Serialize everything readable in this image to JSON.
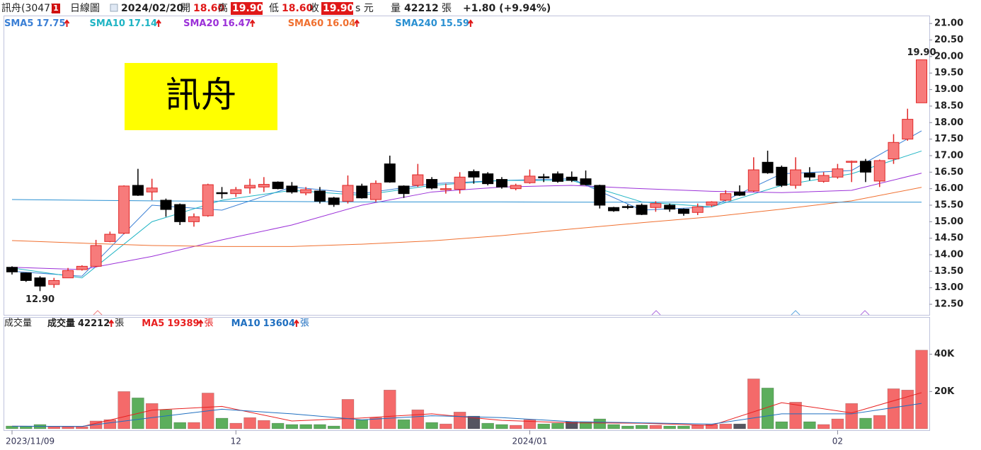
{
  "header": {
    "name": "訊舟(3047)",
    "badge": "1",
    "period": "日線圖",
    "date": "2024/02/20",
    "open_label": "開",
    "open": "18.60",
    "high_label": "高",
    "high": "19.90",
    "low_label": "低",
    "low": "18.60",
    "close_label": "收",
    "close": "19.90",
    "currency": "s 元",
    "volume_label": "量",
    "volume": "42212",
    "volume_unit": "張",
    "change": "+1.80 (+9.94%)"
  },
  "chart_data": [
    {
      "type": "candlestick",
      "title": "訊舟",
      "categories": [
        "2023/11/09",
        null,
        null,
        null,
        null,
        null,
        null,
        null,
        null,
        null,
        null,
        null,
        null,
        null,
        null,
        null,
        "12",
        null,
        null,
        null,
        null,
        null,
        null,
        null,
        null,
        null,
        null,
        null,
        null,
        null,
        null,
        null,
        null,
        null,
        null,
        null,
        null,
        "2024/01",
        null,
        null,
        null,
        null,
        null,
        null,
        null,
        null,
        null,
        null,
        null,
        null,
        null,
        null,
        null,
        null,
        null,
        null,
        null,
        null,
        null,
        "02",
        null,
        null,
        null,
        null,
        null,
        null
      ],
      "open": [
        13.62,
        13.45,
        13.3,
        13.1,
        13.3,
        13.55,
        13.65,
        14.4,
        14.65,
        16.1,
        15.9,
        15.65,
        15.52,
        15.0,
        15.18,
        15.88,
        15.85,
        16.02,
        16.05,
        16.2,
        16.08,
        15.87,
        15.93,
        15.72,
        15.62,
        16.08,
        15.67,
        16.75,
        16.08,
        16.1,
        16.28,
        16.0,
        15.98,
        16.52,
        16.45,
        16.28,
        16.0,
        16.18,
        16.36,
        16.45,
        16.35,
        16.3,
        16.1,
        15.43,
        15.46,
        15.5,
        15.43,
        15.5,
        15.38,
        15.28,
        15.5,
        15.65,
        15.9,
        15.93,
        16.8,
        16.65,
        16.1,
        16.47,
        16.22,
        16.35,
        16.83,
        16.83,
        16.23,
        16.9,
        17.5,
        18.6
      ],
      "high": [
        13.65,
        13.46,
        13.35,
        13.3,
        13.6,
        13.68,
        14.45,
        14.7,
        16.1,
        16.6,
        16.3,
        15.7,
        15.55,
        15.25,
        16.15,
        16.05,
        16.05,
        16.3,
        16.35,
        16.22,
        16.2,
        16.05,
        16.05,
        15.75,
        16.4,
        16.15,
        16.25,
        17.0,
        16.1,
        16.75,
        16.35,
        16.15,
        16.5,
        16.58,
        16.5,
        16.35,
        16.15,
        16.58,
        16.45,
        16.52,
        16.52,
        16.55,
        16.12,
        15.45,
        15.52,
        15.55,
        15.62,
        15.55,
        15.4,
        15.55,
        15.62,
        15.95,
        16.1,
        16.95,
        17.15,
        16.7,
        16.95,
        16.65,
        16.5,
        16.75,
        16.85,
        16.9,
        16.88,
        17.65,
        18.42,
        19.9
      ],
      "low": [
        13.4,
        13.18,
        12.9,
        13.0,
        13.3,
        13.52,
        13.62,
        14.38,
        14.62,
        15.78,
        15.65,
        15.15,
        14.9,
        14.85,
        15.15,
        15.7,
        15.75,
        15.85,
        15.9,
        15.98,
        15.85,
        15.8,
        15.55,
        15.45,
        15.55,
        15.7,
        15.6,
        16.18,
        15.72,
        16.05,
        15.98,
        15.85,
        15.85,
        16.15,
        16.1,
        16.0,
        15.95,
        16.15,
        16.2,
        16.18,
        16.2,
        16.1,
        15.4,
        15.3,
        15.38,
        15.2,
        15.3,
        15.3,
        15.18,
        15.2,
        15.45,
        15.62,
        15.78,
        15.9,
        16.45,
        16.05,
        16.0,
        16.25,
        16.18,
        16.3,
        16.2,
        16.2,
        16.05,
        16.75,
        17.45,
        18.6
      ],
      "close": [
        13.48,
        13.22,
        13.05,
        13.22,
        13.52,
        13.65,
        14.28,
        14.62,
        16.08,
        15.8,
        16.02,
        15.37,
        15.0,
        15.15,
        16.12,
        15.87,
        15.97,
        16.1,
        16.13,
        16.0,
        15.9,
        15.97,
        15.62,
        15.52,
        16.1,
        15.72,
        16.16,
        16.2,
        15.85,
        16.42,
        16.02,
        16.0,
        16.35,
        16.35,
        16.15,
        16.05,
        16.1,
        16.38,
        16.35,
        16.22,
        16.25,
        16.12,
        15.5,
        15.33,
        15.45,
        15.22,
        15.55,
        15.38,
        15.25,
        15.45,
        15.6,
        15.85,
        15.8,
        16.57,
        16.48,
        16.1,
        16.57,
        16.35,
        16.4,
        16.6,
        16.83,
        16.5,
        16.85,
        17.4,
        18.1,
        19.9
      ],
      "up_color": "#f77b7b",
      "up_edge": "#e02828",
      "down_color": "#000000",
      "series": [
        {
          "name": "SMA5",
          "color": "#3a7fd5",
          "x": [
            0,
            5,
            10,
            15,
            20,
            25,
            30,
            35,
            40,
            45,
            50,
            55,
            60,
            65
          ],
          "values": [
            13.5,
            13.35,
            15.5,
            15.35,
            16.05,
            15.85,
            16.15,
            16.25,
            16.3,
            15.35,
            15.45,
            16.45,
            16.55,
            17.75
          ]
        },
        {
          "name": "SMA10",
          "color": "#1fb4c4",
          "x": [
            0,
            5,
            10,
            15,
            20,
            25,
            30,
            35,
            40,
            45,
            50,
            55,
            60,
            65
          ],
          "values": [
            13.6,
            13.3,
            15.0,
            15.65,
            15.95,
            15.8,
            16.1,
            16.25,
            16.25,
            15.6,
            15.45,
            16.1,
            16.45,
            17.14
          ]
        },
        {
          "name": "SMA20",
          "color": "#9b30d8",
          "x": [
            0,
            5,
            10,
            15,
            20,
            25,
            30,
            35,
            40,
            45,
            50,
            55,
            60,
            65
          ],
          "values": [
            13.62,
            13.55,
            13.95,
            14.45,
            14.9,
            15.5,
            15.9,
            16.05,
            16.1,
            16.0,
            15.92,
            15.88,
            15.95,
            16.47
          ]
        },
        {
          "name": "SMA60",
          "color": "#f07030",
          "x": [
            0,
            5,
            10,
            15,
            20,
            25,
            30,
            35,
            40,
            45,
            50,
            55,
            60,
            65
          ],
          "values": [
            14.43,
            14.35,
            14.28,
            14.25,
            14.25,
            14.32,
            14.42,
            14.58,
            14.78,
            14.97,
            15.15,
            15.38,
            15.63,
            16.04
          ]
        },
        {
          "name": "SMA240",
          "color": "#2a90d2",
          "x": [
            0,
            5,
            10,
            15,
            20,
            25,
            30,
            35,
            40,
            45,
            50,
            55,
            60,
            65
          ],
          "values": [
            15.67,
            15.65,
            15.63,
            15.62,
            15.61,
            15.6,
            15.6,
            15.6,
            15.59,
            15.59,
            15.59,
            15.59,
            15.59,
            15.59
          ]
        }
      ],
      "annotations": [
        {
          "index": 2,
          "value": 12.9,
          "label": "12.90"
        },
        {
          "index": 65,
          "value": 19.9,
          "label": "19.90"
        }
      ],
      "ylim": [
        12.18,
        21.24
      ],
      "yticks": [
        {
          "value": 12.5,
          "label": "12.50"
        },
        {
          "value": 13,
          "label": "13.00"
        },
        {
          "value": 13.5,
          "label": "13.50"
        },
        {
          "value": 14,
          "label": "14.00"
        },
        {
          "value": 14.5,
          "label": "14.50"
        },
        {
          "value": 15,
          "label": "15.00"
        },
        {
          "value": 15.5,
          "label": "15.50"
        },
        {
          "value": 16,
          "label": "16.00"
        },
        {
          "value": 16.5,
          "label": "16.50"
        },
        {
          "value": 17,
          "label": "17.00"
        },
        {
          "value": 17.5,
          "label": "17.50"
        },
        {
          "value": 18,
          "label": "18.00"
        },
        {
          "value": 18.5,
          "label": "18.50"
        },
        {
          "value": 19,
          "label": "19.00"
        },
        {
          "value": 19.5,
          "label": "19.50"
        },
        {
          "value": 20,
          "label": "20.00"
        },
        {
          "value": 20.5,
          "label": "20.50"
        },
        {
          "value": 21,
          "label": "21.00"
        }
      ]
    },
    {
      "type": "bar",
      "title": "成交量",
      "name": "成交量",
      "unit": "張",
      "values": [
        1500,
        1500,
        2300,
        1100,
        1100,
        1100,
        4200,
        4900,
        20000,
        16600,
        13600,
        10200,
        3400,
        3400,
        19200,
        5700,
        3000,
        6000,
        4500,
        3000,
        2300,
        2300,
        2300,
        1500,
        15800,
        4900,
        6000,
        20800,
        4900,
        10200,
        3400,
        2600,
        9000,
        6800,
        3000,
        2300,
        1900,
        4900,
        2600,
        3000,
        3800,
        3800,
        5300,
        2300,
        1500,
        1900,
        1900,
        1500,
        1500,
        1900,
        2300,
        2600,
        2600,
        26800,
        21900,
        3800,
        14300,
        3800,
        2300,
        5300,
        13600,
        5700,
        7200,
        21500,
        20800,
        42212
      ],
      "bar_colors": [
        "down",
        "down",
        "down",
        "up",
        "up",
        "up",
        "up",
        "up",
        "up",
        "down",
        "up",
        "down",
        "down",
        "up",
        "up",
        "down",
        "up",
        "up",
        "up",
        "down",
        "down",
        "down",
        "down",
        "down",
        "up",
        "down",
        "up",
        "up",
        "down",
        "up",
        "down",
        "up",
        "up",
        "flat",
        "down",
        "down",
        "up",
        "up",
        "down",
        "down",
        "flat",
        "down",
        "down",
        "down",
        "down",
        "down",
        "up",
        "down",
        "down",
        "up",
        "up",
        "up",
        "flat",
        "up",
        "down",
        "down",
        "up",
        "down",
        "up",
        "up",
        "up",
        "down",
        "up",
        "up",
        "up",
        "up"
      ],
      "palette": {
        "up": "#f46a6a",
        "down": "#5cae5c",
        "flat": "#555560"
      },
      "color": "#222222",
      "series": [
        {
          "name": "MA5",
          "color": "#e82020",
          "x": [
            0,
            5,
            10,
            15,
            20,
            25,
            30,
            35,
            40,
            45,
            50,
            55,
            60,
            65
          ],
          "values": [
            1400,
            1200,
            10000,
            12000,
            4200,
            5800,
            8000,
            4500,
            3200,
            3000,
            1800,
            14000,
            8500,
            19389
          ]
        },
        {
          "name": "MA10",
          "color": "#1f6fc0",
          "x": [
            0,
            5,
            10,
            15,
            20,
            25,
            30,
            35,
            40,
            45,
            50,
            55,
            60,
            65
          ],
          "values": [
            1400,
            1300,
            6000,
            10500,
            8000,
            4800,
            7000,
            6000,
            3800,
            3200,
            2500,
            8000,
            8000,
            13604
          ]
        }
      ],
      "ylim": [
        0,
        60000
      ],
      "yticks": [
        {
          "value": 20000,
          "label": "20K"
        },
        {
          "value": 40000,
          "label": "40K"
        }
      ]
    }
  ]
}
